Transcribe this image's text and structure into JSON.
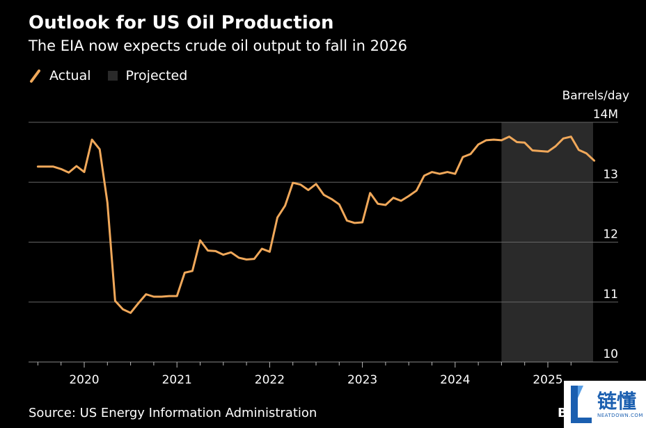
{
  "title": "Outlook for US Oil Production",
  "subtitle": "The EIA now expects crude oil output to fall in 2026",
  "legend": {
    "actual_label": "Actual",
    "projected_label": "Projected"
  },
  "source": "Source: US Energy Information Administration",
  "brand": "B",
  "watermark": {
    "cn": "链懂",
    "en": "NEATDOWN.COM"
  },
  "colors": {
    "line": "#f0a85a",
    "projected_band": "#2a2a2a",
    "grid": "#666666",
    "background": "#000000"
  },
  "chart_data": {
    "type": "line",
    "title": "Outlook for US Oil Production",
    "subtitle": "The EIA now expects crude oil output to fall in 2026",
    "ylabel": "Barrels/day",
    "y_unit_suffix": "M",
    "ylim": [
      10,
      14
    ],
    "yticks": [
      10,
      11,
      12,
      13,
      14
    ],
    "ytick_labels": [
      "10",
      "11",
      "12",
      "13",
      "14M"
    ],
    "xticks": [
      "2020",
      "2021",
      "2022",
      "2023",
      "2024",
      "2025"
    ],
    "x_start": "2019-06",
    "x_end": "2025-12",
    "projected_start": "2024-07",
    "grid": true,
    "legend_position": "top-left",
    "series": [
      {
        "name": "Actual",
        "x": [
          "2019-07",
          "2019-08",
          "2019-09",
          "2019-10",
          "2019-11",
          "2019-12",
          "2020-01",
          "2020-02",
          "2020-03",
          "2020-04",
          "2020-05",
          "2020-06",
          "2020-07",
          "2020-08",
          "2020-09",
          "2020-10",
          "2020-11",
          "2020-12",
          "2021-01",
          "2021-02",
          "2021-03",
          "2021-04",
          "2021-05",
          "2021-06",
          "2021-07",
          "2021-08",
          "2021-09",
          "2021-10",
          "2021-11",
          "2021-12",
          "2022-01",
          "2022-02",
          "2022-03",
          "2022-04",
          "2022-05",
          "2022-06",
          "2022-07",
          "2022-08",
          "2022-09",
          "2022-10",
          "2022-11",
          "2022-12",
          "2023-01",
          "2023-02",
          "2023-03",
          "2023-04",
          "2023-05",
          "2023-06",
          "2023-07",
          "2023-08",
          "2023-09",
          "2023-10",
          "2023-11",
          "2023-12",
          "2024-01",
          "2024-02",
          "2024-03",
          "2024-04",
          "2024-05",
          "2024-06",
          "2024-07",
          "2024-08",
          "2024-09",
          "2024-10",
          "2024-11",
          "2024-12",
          "2025-01",
          "2025-02",
          "2025-03",
          "2025-04",
          "2025-05",
          "2025-06",
          "2025-07"
        ],
        "values": [
          13.26,
          13.26,
          13.26,
          13.22,
          13.16,
          13.27,
          13.17,
          13.71,
          13.55,
          12.66,
          11.02,
          10.88,
          10.82,
          10.98,
          11.13,
          11.09,
          11.09,
          11.1,
          11.1,
          11.49,
          11.52,
          12.03,
          11.86,
          11.85,
          11.79,
          11.83,
          11.74,
          11.71,
          11.72,
          11.89,
          11.84,
          12.41,
          12.61,
          12.99,
          12.96,
          12.87,
          12.97,
          12.79,
          12.72,
          12.63,
          12.36,
          12.32,
          12.33,
          12.82,
          12.64,
          12.62,
          12.74,
          12.69,
          12.77,
          12.86,
          13.11,
          13.17,
          13.14,
          13.17,
          13.14,
          13.42,
          13.47,
          13.63,
          13.7,
          13.71,
          13.7,
          13.76,
          13.67,
          13.66,
          13.53,
          13.52,
          13.51,
          13.6,
          13.73,
          13.76,
          13.54,
          13.48,
          13.36
        ]
      }
    ]
  }
}
